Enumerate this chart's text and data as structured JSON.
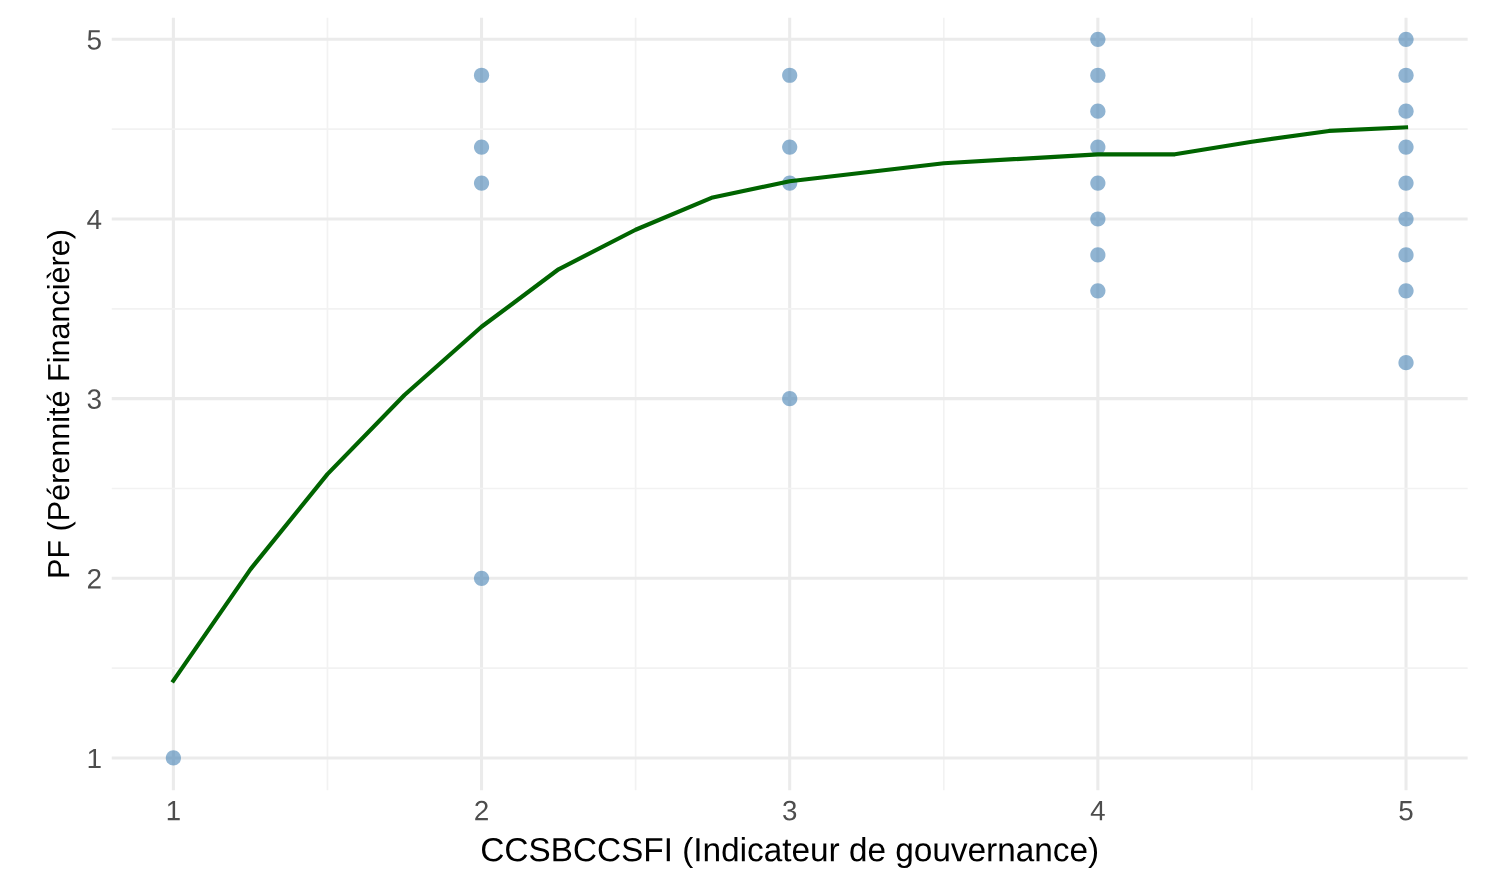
{
  "chart_data": {
    "type": "scatter",
    "xlabel": "CCSBCCSFI (Indicateur de gouvernance)",
    "ylabel": "PF (Pérennité Financière)",
    "xlim": [
      0.8,
      5.2
    ],
    "ylim": [
      0.82,
      5.12
    ],
    "xticks": [
      1,
      2,
      3,
      4,
      5
    ],
    "yticks": [
      1,
      2,
      3,
      4,
      5
    ],
    "grid": true,
    "series": [
      {
        "marker": "circle",
        "color": "#4682b4",
        "x": [
          1,
          2,
          2,
          2,
          2,
          3,
          3,
          3,
          3,
          4,
          4,
          4,
          4,
          4,
          4,
          4,
          4,
          5,
          5,
          5,
          5,
          5,
          5,
          5,
          5,
          5
        ],
        "values": [
          1,
          4.8,
          4.4,
          4.2,
          2,
          4.8,
          4.4,
          4.2,
          3,
          5,
          4.8,
          4.6,
          4.4,
          4.2,
          4.0,
          3.8,
          3.6,
          5,
          4.8,
          4.6,
          4.4,
          4.2,
          4.0,
          3.8,
          3.6,
          3.2
        ]
      },
      {
        "type": "line",
        "color": "#006400",
        "x": [
          1,
          1.25,
          1.5,
          1.75,
          2,
          2.25,
          2.5,
          2.75,
          3,
          3.5,
          4,
          4.25,
          4.5,
          4.75,
          5
        ],
        "values": [
          1.43,
          2.05,
          2.58,
          3.02,
          3.4,
          3.72,
          3.94,
          4.12,
          4.21,
          4.31,
          4.36,
          4.36,
          4.43,
          4.49,
          4.51
        ]
      }
    ]
  }
}
